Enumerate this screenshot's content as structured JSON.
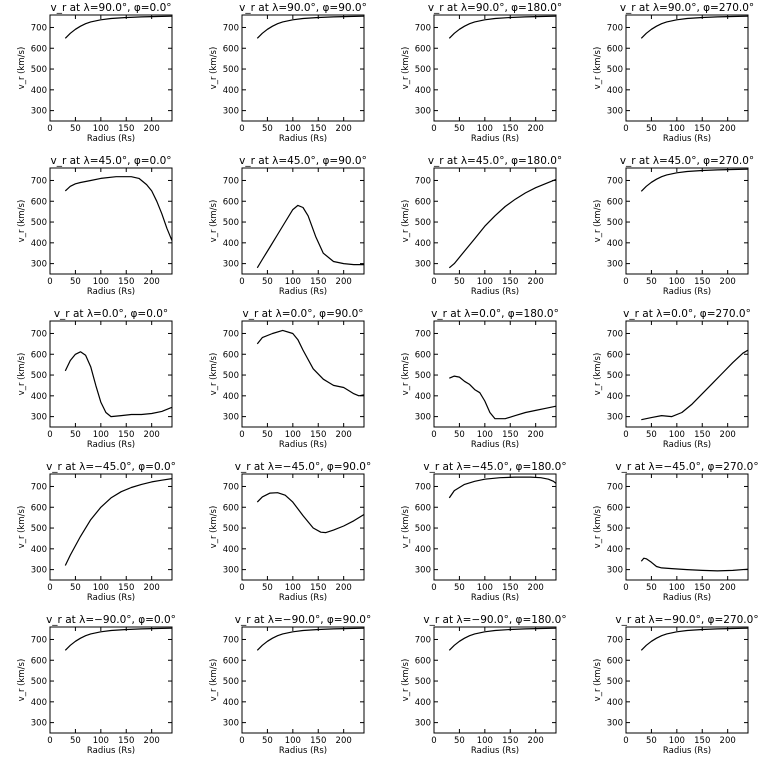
{
  "chart_data": [
    {
      "type": "line",
      "title": "v_r at λ=90.0°, φ=0.0°",
      "xlabel": "Radius (Rs)",
      "ylabel": "v_r (km/s)",
      "xlim": [
        0,
        240
      ],
      "ylim": [
        250,
        760
      ],
      "x": [
        30,
        40,
        50,
        60,
        70,
        80,
        100,
        120,
        150,
        180,
        210,
        240
      ],
      "values": [
        648,
        672,
        691,
        706,
        718,
        727,
        737,
        743,
        748,
        751,
        753,
        754
      ]
    },
    {
      "type": "line",
      "title": "v_r at λ=90.0°, φ=90.0°",
      "xlabel": "Radius (Rs)",
      "ylabel": "v_r (km/s)",
      "xlim": [
        0,
        240
      ],
      "ylim": [
        250,
        760
      ],
      "x": [
        30,
        40,
        50,
        60,
        70,
        80,
        100,
        120,
        150,
        180,
        210,
        240
      ],
      "values": [
        648,
        672,
        691,
        706,
        718,
        727,
        737,
        743,
        748,
        751,
        753,
        754
      ]
    },
    {
      "type": "line",
      "title": "v_r at λ=90.0°, φ=180.0°",
      "xlabel": "Radius (Rs)",
      "ylabel": "v_r (km/s)",
      "xlim": [
        0,
        240
      ],
      "ylim": [
        250,
        760
      ],
      "x": [
        30,
        40,
        50,
        60,
        70,
        80,
        100,
        120,
        150,
        180,
        210,
        240
      ],
      "values": [
        648,
        672,
        691,
        706,
        718,
        727,
        737,
        743,
        748,
        751,
        753,
        754
      ]
    },
    {
      "type": "line",
      "title": "v_r at λ=90.0°, φ=270.0°",
      "xlabel": "Radius (Rs)",
      "ylabel": "v_r (km/s)",
      "xlim": [
        0,
        240
      ],
      "ylim": [
        250,
        760
      ],
      "x": [
        30,
        40,
        50,
        60,
        70,
        80,
        100,
        120,
        150,
        180,
        210,
        240
      ],
      "values": [
        648,
        672,
        691,
        706,
        718,
        727,
        737,
        743,
        748,
        751,
        753,
        754
      ]
    },
    {
      "type": "line",
      "title": "v_r at λ=45.0°, φ=0.0°",
      "xlabel": "Radius (Rs)",
      "ylabel": "v_r (km/s)",
      "xlim": [
        0,
        240
      ],
      "ylim": [
        250,
        760
      ],
      "x": [
        30,
        40,
        50,
        60,
        80,
        100,
        130,
        160,
        175,
        190,
        200,
        210,
        220,
        230,
        240
      ],
      "values": [
        650,
        672,
        684,
        690,
        700,
        710,
        718,
        718,
        710,
        680,
        650,
        600,
        540,
        470,
        410
      ]
    },
    {
      "type": "line",
      "title": "v_r at λ=45.0°, φ=90.0°",
      "xlabel": "Radius (Rs)",
      "ylabel": "v_r (km/s)",
      "xlim": [
        0,
        240
      ],
      "ylim": [
        250,
        760
      ],
      "x": [
        30,
        40,
        55,
        70,
        85,
        100,
        110,
        120,
        130,
        145,
        160,
        180,
        200,
        220,
        240
      ],
      "values": [
        280,
        320,
        380,
        440,
        500,
        560,
        580,
        570,
        530,
        430,
        350,
        310,
        300,
        295,
        295
      ]
    },
    {
      "type": "line",
      "title": "v_r at λ=45.0°, φ=180.0°",
      "xlabel": "Radius (Rs)",
      "ylabel": "v_r (km/s)",
      "xlim": [
        0,
        240
      ],
      "ylim": [
        250,
        760
      ],
      "x": [
        30,
        40,
        60,
        80,
        100,
        120,
        140,
        160,
        180,
        200,
        220,
        240
      ],
      "values": [
        280,
        300,
        360,
        420,
        480,
        530,
        575,
        610,
        640,
        665,
        685,
        705
      ]
    },
    {
      "type": "line",
      "title": "v_r at λ=45.0°, φ=270.0°",
      "xlabel": "Radius (Rs)",
      "ylabel": "v_r (km/s)",
      "xlim": [
        0,
        240
      ],
      "ylim": [
        250,
        760
      ],
      "x": [
        30,
        40,
        50,
        60,
        70,
        80,
        100,
        120,
        150,
        180,
        210,
        240
      ],
      "values": [
        648,
        672,
        691,
        706,
        718,
        727,
        737,
        743,
        748,
        751,
        753,
        754
      ]
    },
    {
      "type": "line",
      "title": "v_r at λ=0.0°, φ=0.0°",
      "xlabel": "Radius (Rs)",
      "ylabel": "v_r (km/s)",
      "xlim": [
        0,
        240
      ],
      "ylim": [
        250,
        760
      ],
      "x": [
        30,
        40,
        50,
        60,
        70,
        80,
        90,
        100,
        110,
        120,
        140,
        160,
        180,
        200,
        220,
        240
      ],
      "values": [
        520,
        570,
        600,
        612,
        595,
        540,
        450,
        370,
        320,
        300,
        305,
        310,
        310,
        315,
        325,
        345
      ]
    },
    {
      "type": "line",
      "title": "v_r at λ=0.0°, φ=90.0°",
      "xlabel": "Radius (Rs)",
      "ylabel": "v_r (km/s)",
      "xlim": [
        0,
        240
      ],
      "ylim": [
        250,
        760
      ],
      "x": [
        30,
        40,
        60,
        80,
        100,
        110,
        120,
        140,
        160,
        180,
        200,
        210,
        220,
        230,
        240
      ],
      "values": [
        650,
        680,
        700,
        715,
        700,
        670,
        620,
        530,
        480,
        450,
        440,
        425,
        410,
        400,
        405
      ]
    },
    {
      "type": "line",
      "title": "v_r at λ=0.0°, φ=180.0°",
      "xlabel": "Radius (Rs)",
      "ylabel": "v_r (km/s)",
      "xlim": [
        0,
        240
      ],
      "ylim": [
        250,
        760
      ],
      "x": [
        30,
        40,
        50,
        60,
        70,
        80,
        90,
        100,
        110,
        120,
        140,
        160,
        180,
        200,
        220,
        240
      ],
      "values": [
        485,
        495,
        490,
        470,
        455,
        430,
        415,
        375,
        320,
        290,
        290,
        305,
        320,
        330,
        340,
        350
      ]
    },
    {
      "type": "line",
      "title": "v_r at λ=0.0°, φ=270.0°",
      "xlabel": "Radius (Rs)",
      "ylabel": "v_r (km/s)",
      "xlim": [
        0,
        240
      ],
      "ylim": [
        250,
        760
      ],
      "x": [
        30,
        50,
        70,
        90,
        110,
        130,
        150,
        170,
        190,
        210,
        230,
        240
      ],
      "values": [
        285,
        295,
        305,
        300,
        320,
        360,
        410,
        460,
        510,
        560,
        605,
        620
      ]
    },
    {
      "type": "line",
      "title": "v_r at λ=−45.0°, φ=0.0°",
      "xlabel": "Radius (Rs)",
      "ylabel": "v_r (km/s)",
      "xlim": [
        0,
        240
      ],
      "ylim": [
        250,
        760
      ],
      "x": [
        30,
        40,
        60,
        80,
        100,
        120,
        140,
        160,
        180,
        200,
        220,
        240
      ],
      "values": [
        320,
        370,
        460,
        540,
        600,
        645,
        675,
        695,
        710,
        722,
        730,
        738
      ]
    },
    {
      "type": "line",
      "title": "v_r at λ=−45.0°, φ=90.0°",
      "xlabel": "Radius (Rs)",
      "ylabel": "v_r (km/s)",
      "xlim": [
        0,
        240
      ],
      "ylim": [
        250,
        760
      ],
      "x": [
        30,
        40,
        55,
        70,
        85,
        100,
        120,
        140,
        155,
        165,
        180,
        200,
        220,
        240
      ],
      "values": [
        625,
        650,
        668,
        670,
        658,
        625,
        560,
        500,
        480,
        478,
        490,
        510,
        535,
        565
      ]
    },
    {
      "type": "line",
      "title": "v_r at λ=−45.0°, φ=180.0°",
      "xlabel": "Radius (Rs)",
      "ylabel": "v_r (km/s)",
      "xlim": [
        0,
        240
      ],
      "ylim": [
        250,
        760
      ],
      "x": [
        30,
        40,
        60,
        80,
        100,
        130,
        160,
        190,
        210,
        225,
        235,
        240
      ],
      "values": [
        645,
        680,
        710,
        725,
        735,
        742,
        745,
        745,
        742,
        735,
        725,
        715
      ]
    },
    {
      "type": "line",
      "title": "v_r at λ=−45.0°, φ=270.0°",
      "xlabel": "Radius (Rs)",
      "ylabel": "v_r (km/s)",
      "xlim": [
        0,
        240
      ],
      "ylim": [
        250,
        760
      ],
      "x": [
        30,
        35,
        40,
        50,
        60,
        70,
        90,
        120,
        150,
        180,
        210,
        240
      ],
      "values": [
        340,
        355,
        352,
        335,
        315,
        308,
        305,
        300,
        296,
        294,
        296,
        302
      ]
    },
    {
      "type": "line",
      "title": "v_r at λ=−90.0°, φ=0.0°",
      "xlabel": "Radius (Rs)",
      "ylabel": "v_r (km/s)",
      "xlim": [
        0,
        240
      ],
      "ylim": [
        250,
        760
      ],
      "x": [
        30,
        40,
        50,
        60,
        70,
        80,
        100,
        120,
        150,
        180,
        210,
        240
      ],
      "values": [
        648,
        672,
        691,
        706,
        718,
        727,
        737,
        743,
        748,
        751,
        753,
        754
      ]
    },
    {
      "type": "line",
      "title": "v_r at λ=−90.0°, φ=90.0°",
      "xlabel": "Radius (Rs)",
      "ylabel": "v_r (km/s)",
      "xlim": [
        0,
        240
      ],
      "ylim": [
        250,
        760
      ],
      "x": [
        30,
        40,
        50,
        60,
        70,
        80,
        100,
        120,
        150,
        180,
        210,
        240
      ],
      "values": [
        648,
        672,
        691,
        706,
        718,
        727,
        737,
        743,
        748,
        751,
        753,
        754
      ]
    },
    {
      "type": "line",
      "title": "v_r at λ=−90.0°, φ=180.0°",
      "xlabel": "Radius (Rs)",
      "ylabel": "v_r (km/s)",
      "xlim": [
        0,
        240
      ],
      "ylim": [
        250,
        760
      ],
      "x": [
        30,
        40,
        50,
        60,
        70,
        80,
        100,
        120,
        150,
        180,
        210,
        240
      ],
      "values": [
        648,
        672,
        691,
        706,
        718,
        727,
        737,
        743,
        748,
        751,
        753,
        754
      ]
    },
    {
      "type": "line",
      "title": "v_r at λ=−90.0°, φ=270.0°",
      "xlabel": "Radius (Rs)",
      "ylabel": "v_r (km/s)",
      "xlim": [
        0,
        240
      ],
      "ylim": [
        250,
        760
      ],
      "x": [
        30,
        40,
        50,
        60,
        70,
        80,
        100,
        120,
        150,
        180,
        210,
        240
      ],
      "values": [
        648,
        672,
        691,
        706,
        718,
        727,
        737,
        743,
        748,
        751,
        753,
        754
      ]
    }
  ],
  "axes": {
    "x_ticks": [
      0,
      50,
      100,
      150,
      200
    ],
    "y_ticks": [
      300,
      400,
      500,
      600,
      700
    ],
    "grid": false,
    "legend": "none",
    "line_color": "#000000"
  }
}
